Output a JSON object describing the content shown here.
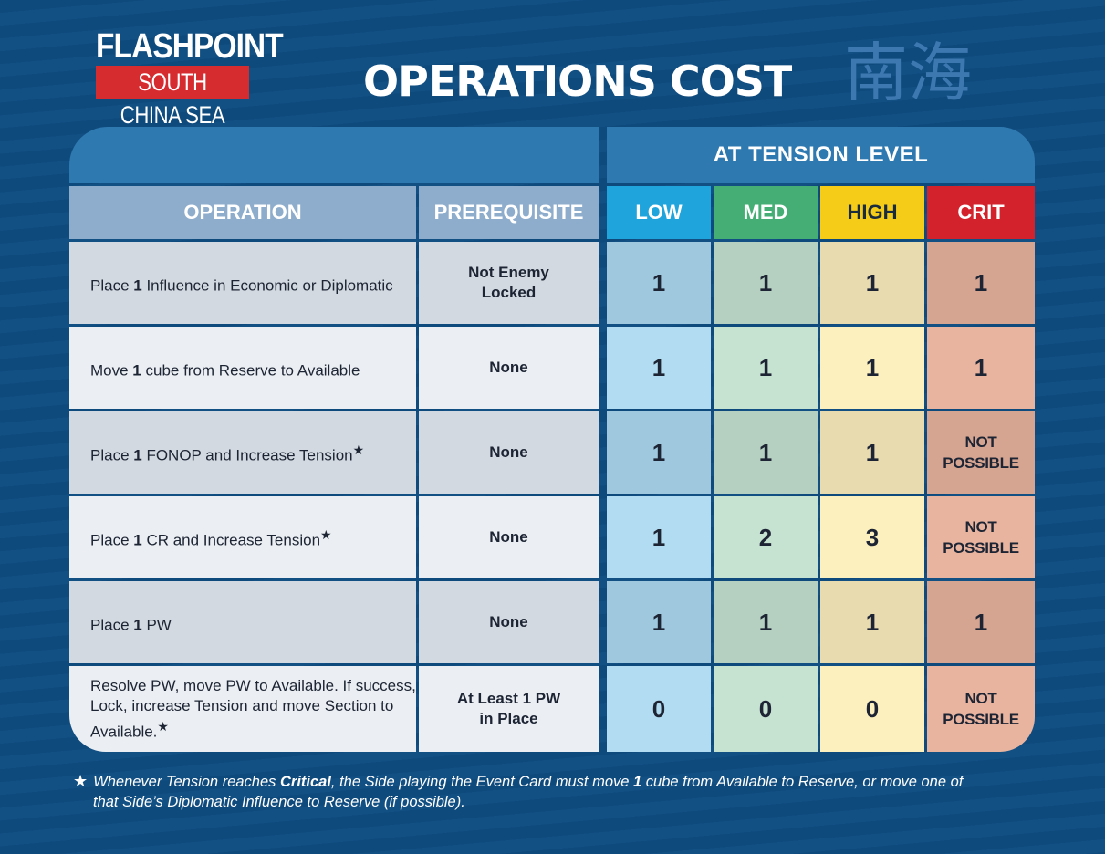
{
  "logo": {
    "line1": "FLASHPOINT",
    "line2": "SOUTH CHINA SEA"
  },
  "title": "OPERATIONS COST",
  "title_cjk": "南海",
  "table": {
    "tension_header": "AT TENSION LEVEL",
    "columns": {
      "operation": "OPERATION",
      "prerequisite": "PREREQUISITE",
      "low": "LOW",
      "med": "MED",
      "high": "HIGH",
      "crit": "CRIT"
    },
    "rows": [
      {
        "op_pre": "Place ",
        "op_num": "1",
        "op_post": " Influence in Economic or Diplomatic",
        "op_star": "",
        "prereq": "Not Enemy Locked",
        "low": "1",
        "med": "1",
        "high": "1",
        "crit": "1"
      },
      {
        "op_pre": "Move ",
        "op_num": "1",
        "op_post": " cube from Reserve to Available",
        "op_star": "",
        "prereq": "None",
        "low": "1",
        "med": "1",
        "high": "1",
        "crit": "1"
      },
      {
        "op_pre": "Place ",
        "op_num": "1",
        "op_post": " FONOP and Increase Tension",
        "op_star": "★",
        "prereq": "None",
        "low": "1",
        "med": "1",
        "high": "1",
        "crit": "NOT POSSIBLE"
      },
      {
        "op_pre": "Place ",
        "op_num": "1",
        "op_post": " CR and Increase Tension",
        "op_star": "★",
        "prereq": "None",
        "low": "1",
        "med": "2",
        "high": "3",
        "crit": "NOT POSSIBLE"
      },
      {
        "op_pre": "Place ",
        "op_num": "1",
        "op_post": " PW",
        "op_star": "",
        "prereq": "None",
        "low": "1",
        "med": "1",
        "high": "1",
        "crit": "1"
      },
      {
        "op_pre": "Resolve PW, move PW to Available. If success, Lock, increase Tension and move Section to Available.",
        "op_num": "",
        "op_post": "",
        "op_star": "★",
        "prereq": "At Least 1 PW in Place",
        "low": "0",
        "med": "0",
        "high": "0",
        "crit": "NOT POSSIBLE"
      }
    ]
  },
  "footnote": {
    "star": "★",
    "part1": "Whenever Tension reaches ",
    "bold1": "Critical",
    "part2": ", the Side playing the Event Card must move ",
    "bold2": "1",
    "part3": " cube from Available to Reserve, or move one of",
    "line2": "that Side’s Diplomatic Influence to Reserve (if possible)."
  },
  "colors": {
    "background": "#0f4a7c",
    "header": "#2f79b1",
    "low": "#1fa4dc",
    "med": "#45ae74",
    "high": "#f5cc18",
    "crit": "#d3222c",
    "logo_red": "#d62b2f"
  }
}
